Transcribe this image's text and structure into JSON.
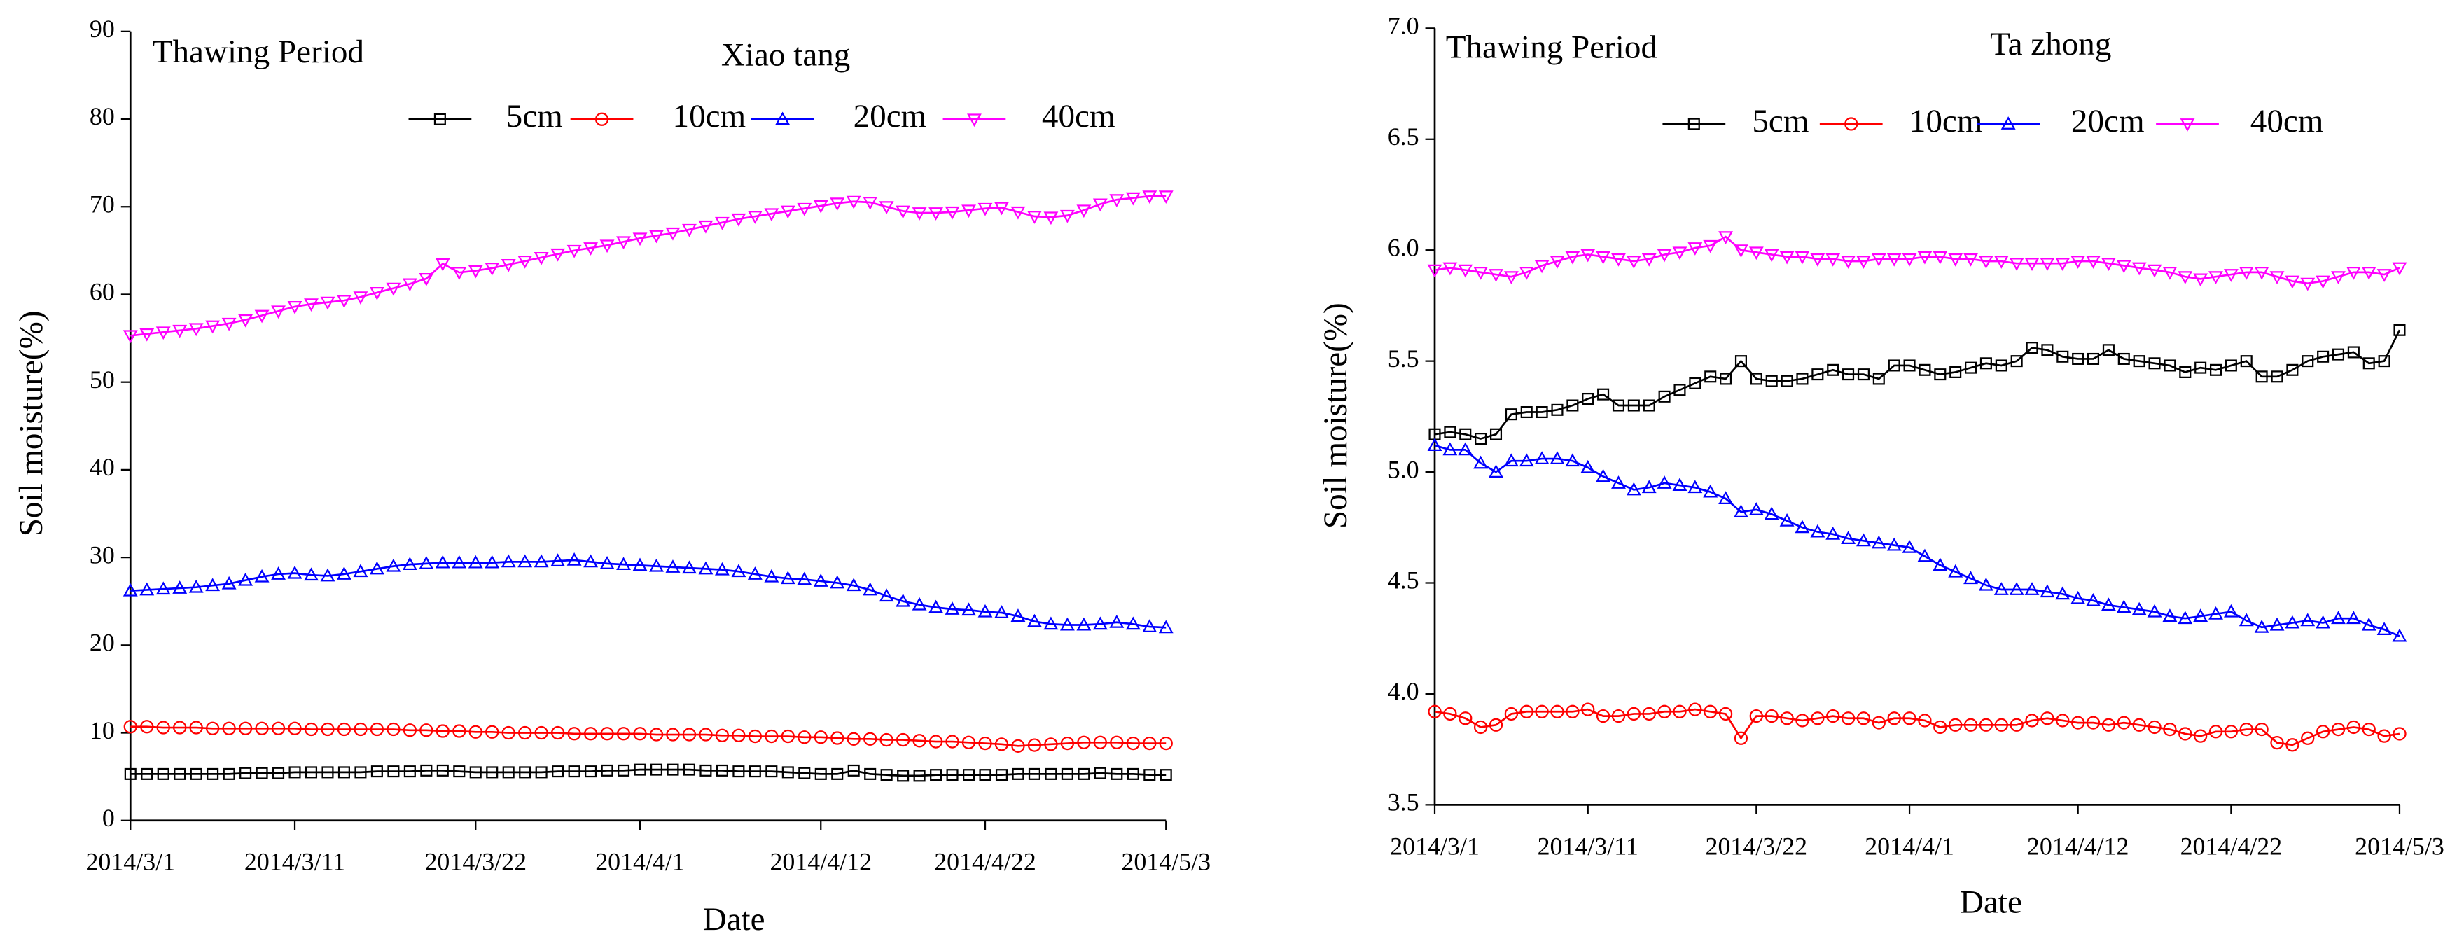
{
  "chart_data": [
    {
      "type": "line",
      "title": "Xiao tang",
      "annotation": "Thawing Period",
      "xlabel": "Date",
      "ylabel": "Soil moisture(%)",
      "categories": [
        "2014/3/1",
        null,
        null,
        null,
        null,
        null,
        null,
        null,
        null,
        null,
        "2014/3/11",
        null,
        null,
        null,
        null,
        null,
        null,
        null,
        null,
        null,
        null,
        "2014/3/22",
        null,
        null,
        null,
        null,
        null,
        null,
        null,
        null,
        null,
        "2014/4/1",
        null,
        null,
        null,
        null,
        null,
        null,
        null,
        null,
        null,
        null,
        "2014/4/12",
        null,
        null,
        null,
        null,
        null,
        null,
        null,
        null,
        null,
        "2014/4/22",
        null,
        null,
        null,
        null,
        null,
        null,
        null,
        null,
        null,
        null,
        "2014/5/3"
      ],
      "ylim": [
        0,
        90
      ],
      "yticks": [
        0,
        10,
        20,
        30,
        40,
        50,
        60,
        70,
        80,
        90
      ],
      "series": [
        {
          "name": "5cm",
          "color": "#000000",
          "marker": "square",
          "values": [
            5.3,
            5.3,
            5.3,
            5.3,
            5.3,
            5.3,
            5.3,
            5.4,
            5.4,
            5.4,
            5.5,
            5.5,
            5.5,
            5.5,
            5.5,
            5.6,
            5.6,
            5.6,
            5.7,
            5.7,
            5.6,
            5.5,
            5.5,
            5.5,
            5.5,
            5.5,
            5.6,
            5.6,
            5.6,
            5.7,
            5.7,
            5.8,
            5.8,
            5.8,
            5.8,
            5.7,
            5.7,
            5.6,
            5.6,
            5.6,
            5.5,
            5.4,
            5.3,
            5.3,
            5.7,
            5.3,
            5.2,
            5.1,
            5.1,
            5.2,
            5.2,
            5.2,
            5.2,
            5.2,
            5.3,
            5.3,
            5.3,
            5.3,
            5.3,
            5.4,
            5.3,
            5.3,
            5.2,
            5.2
          ]
        },
        {
          "name": "10cm",
          "color": "#ff0000",
          "marker": "circle",
          "values": [
            10.7,
            10.7,
            10.6,
            10.6,
            10.6,
            10.5,
            10.5,
            10.5,
            10.5,
            10.5,
            10.5,
            10.4,
            10.4,
            10.4,
            10.4,
            10.4,
            10.4,
            10.3,
            10.3,
            10.2,
            10.2,
            10.1,
            10.1,
            10.0,
            10.0,
            10.0,
            10.0,
            9.9,
            9.9,
            9.9,
            9.9,
            9.9,
            9.8,
            9.8,
            9.8,
            9.8,
            9.7,
            9.7,
            9.6,
            9.6,
            9.6,
            9.5,
            9.5,
            9.4,
            9.3,
            9.3,
            9.2,
            9.2,
            9.1,
            9.0,
            9.0,
            8.9,
            8.8,
            8.7,
            8.5,
            8.6,
            8.7,
            8.8,
            8.9,
            8.9,
            8.9,
            8.8,
            8.8,
            8.8
          ]
        },
        {
          "name": "20cm",
          "color": "#0000ff",
          "marker": "triangle-up",
          "values": [
            26.2,
            26.3,
            26.4,
            26.5,
            26.6,
            26.8,
            27.0,
            27.4,
            27.8,
            28.1,
            28.2,
            28.0,
            27.9,
            28.1,
            28.4,
            28.7,
            29.0,
            29.2,
            29.3,
            29.4,
            29.4,
            29.4,
            29.4,
            29.5,
            29.5,
            29.5,
            29.6,
            29.7,
            29.5,
            29.3,
            29.2,
            29.1,
            29.0,
            28.9,
            28.8,
            28.7,
            28.6,
            28.4,
            28.1,
            27.8,
            27.6,
            27.5,
            27.3,
            27.1,
            26.8,
            26.3,
            25.6,
            25.0,
            24.6,
            24.3,
            24.1,
            24.0,
            23.8,
            23.7,
            23.3,
            22.7,
            22.4,
            22.3,
            22.3,
            22.4,
            22.6,
            22.4,
            22.1,
            22.0
          ]
        },
        {
          "name": "40cm",
          "color": "#ff00ff",
          "marker": "triangle-down",
          "values": [
            55.3,
            55.5,
            55.7,
            55.9,
            56.1,
            56.4,
            56.7,
            57.1,
            57.6,
            58.1,
            58.6,
            58.9,
            59.1,
            59.3,
            59.7,
            60.2,
            60.7,
            61.2,
            61.8,
            63.5,
            62.5,
            62.7,
            63.0,
            63.4,
            63.8,
            64.2,
            64.6,
            65.0,
            65.3,
            65.6,
            66.0,
            66.4,
            66.7,
            67.0,
            67.4,
            67.8,
            68.2,
            68.6,
            68.9,
            69.2,
            69.5,
            69.8,
            70.1,
            70.4,
            70.6,
            70.5,
            70.0,
            69.5,
            69.3,
            69.3,
            69.4,
            69.6,
            69.8,
            69.9,
            69.4,
            68.9,
            68.8,
            69.0,
            69.6,
            70.3,
            70.8,
            71.0,
            71.2,
            71.2
          ]
        }
      ]
    },
    {
      "type": "line",
      "title": "Ta zhong",
      "annotation": "Thawing Period",
      "xlabel": "Date",
      "ylabel": "Soil moisture(%)",
      "categories": [
        "2014/3/1",
        null,
        null,
        null,
        null,
        null,
        null,
        null,
        null,
        null,
        "2014/3/11",
        null,
        null,
        null,
        null,
        null,
        null,
        null,
        null,
        null,
        null,
        "2014/3/22",
        null,
        null,
        null,
        null,
        null,
        null,
        null,
        null,
        null,
        "2014/4/1",
        null,
        null,
        null,
        null,
        null,
        null,
        null,
        null,
        null,
        null,
        "2014/4/12",
        null,
        null,
        null,
        null,
        null,
        null,
        null,
        null,
        null,
        "2014/4/22",
        null,
        null,
        null,
        null,
        null,
        null,
        null,
        null,
        null,
        null,
        "2014/5/3"
      ],
      "ylim": [
        3.5,
        7.0
      ],
      "yticks": [
        3.5,
        {
          "value": 4,
          "label": "4.0"
        },
        4.5,
        {
          "value": 5,
          "label": "5.0"
        },
        5.5,
        {
          "value": 6,
          "label": "6.0"
        },
        6.5,
        {
          "value": 7,
          "label": "7.0"
        }
      ],
      "series": [
        {
          "name": "5cm",
          "color": "#000000",
          "marker": "square",
          "values": [
            5.17,
            5.18,
            5.17,
            5.15,
            5.17,
            5.26,
            5.27,
            5.27,
            5.28,
            5.3,
            5.33,
            5.35,
            5.3,
            5.3,
            5.3,
            5.34,
            5.37,
            5.4,
            5.43,
            5.42,
            5.5,
            5.42,
            5.41,
            5.41,
            5.42,
            5.44,
            5.46,
            5.44,
            5.44,
            5.42,
            5.48,
            5.48,
            5.46,
            5.44,
            5.45,
            5.47,
            5.49,
            5.48,
            5.5,
            5.56,
            5.55,
            5.52,
            5.51,
            5.51,
            5.55,
            5.51,
            5.5,
            5.49,
            5.48,
            5.45,
            5.47,
            5.46,
            5.48,
            5.5,
            5.43,
            5.43,
            5.46,
            5.5,
            5.52,
            5.53,
            5.54,
            5.49,
            5.5,
            5.64
          ]
        },
        {
          "name": "10cm",
          "color": "#ff0000",
          "marker": "circle",
          "values": [
            3.92,
            3.91,
            3.89,
            3.85,
            3.86,
            3.91,
            3.92,
            3.92,
            3.92,
            3.92,
            3.93,
            3.9,
            3.9,
            3.91,
            3.91,
            3.92,
            3.92,
            3.93,
            3.92,
            3.91,
            3.8,
            3.9,
            3.9,
            3.89,
            3.88,
            3.89,
            3.9,
            3.89,
            3.89,
            3.87,
            3.89,
            3.89,
            3.88,
            3.85,
            3.86,
            3.86,
            3.86,
            3.86,
            3.86,
            3.88,
            3.89,
            3.88,
            3.87,
            3.87,
            3.86,
            3.87,
            3.86,
            3.85,
            3.84,
            3.82,
            3.81,
            3.83,
            3.83,
            3.84,
            3.84,
            3.78,
            3.77,
            3.8,
            3.83,
            3.84,
            3.85,
            3.84,
            3.81,
            3.82
          ]
        },
        {
          "name": "20cm",
          "color": "#0000ff",
          "marker": "triangle-up",
          "values": [
            5.12,
            5.1,
            5.1,
            5.04,
            5.0,
            5.05,
            5.05,
            5.06,
            5.06,
            5.05,
            5.02,
            4.98,
            4.95,
            4.92,
            4.93,
            4.95,
            4.94,
            4.93,
            4.91,
            4.88,
            4.82,
            4.83,
            4.81,
            4.78,
            4.75,
            4.73,
            4.72,
            4.7,
            4.69,
            4.68,
            4.67,
            4.66,
            4.62,
            4.58,
            4.55,
            4.52,
            4.49,
            4.47,
            4.47,
            4.47,
            4.46,
            4.45,
            4.43,
            4.42,
            4.4,
            4.39,
            4.38,
            4.37,
            4.35,
            4.34,
            4.35,
            4.36,
            4.37,
            4.33,
            4.3,
            4.31,
            4.32,
            4.33,
            4.32,
            4.34,
            4.34,
            4.31,
            4.29,
            4.26
          ]
        },
        {
          "name": "40cm",
          "color": "#ff00ff",
          "marker": "triangle-down",
          "values": [
            5.91,
            5.92,
            5.91,
            5.9,
            5.89,
            5.88,
            5.9,
            5.93,
            5.95,
            5.97,
            5.98,
            5.97,
            5.96,
            5.95,
            5.96,
            5.98,
            5.99,
            6.01,
            6.02,
            6.06,
            6.0,
            5.99,
            5.98,
            5.97,
            5.97,
            5.96,
            5.96,
            5.95,
            5.95,
            5.96,
            5.96,
            5.96,
            5.97,
            5.97,
            5.96,
            5.96,
            5.95,
            5.95,
            5.94,
            5.94,
            5.94,
            5.94,
            5.95,
            5.95,
            5.94,
            5.93,
            5.92,
            5.91,
            5.9,
            5.88,
            5.87,
            5.88,
            5.89,
            5.9,
            5.9,
            5.88,
            5.86,
            5.85,
            5.86,
            5.88,
            5.9,
            5.9,
            5.89,
            5.92
          ]
        }
      ]
    }
  ]
}
